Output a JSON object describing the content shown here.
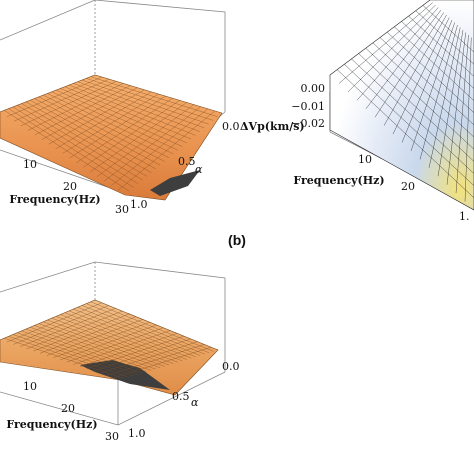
{
  "chart_data": [
    {
      "type": "surface",
      "panel": "a",
      "xlabel": "Frequency(Hz)",
      "x_ticks": [
        "10",
        "20",
        "30"
      ],
      "ylabel": "α",
      "y_ticks": [
        "0.0",
        "0.5",
        "1.0"
      ],
      "zlabel": "ΔVp(km/s)",
      "z_ticks": [],
      "colormap": "orange"
    },
    {
      "type": "surface",
      "panel": "b",
      "panel_label": "(b)",
      "xlabel": "Frequency(Hz)",
      "x_ticks": [
        "10",
        "20"
      ],
      "ylabel": "",
      "y_ticks": [
        "1."
      ],
      "zlabel": "",
      "z_ticks": [
        "0.00",
        "−0.01",
        "−0.02"
      ],
      "colormap": "white-blue-yellow"
    },
    {
      "type": "surface",
      "panel": "c",
      "xlabel": "Frequency(Hz)",
      "x_ticks": [
        "10",
        "20",
        "30"
      ],
      "ylabel": "α",
      "y_ticks": [
        "0.0",
        "0.5",
        "1.0"
      ],
      "zlabel": "",
      "z_ticks": [],
      "colormap": "orange"
    }
  ]
}
